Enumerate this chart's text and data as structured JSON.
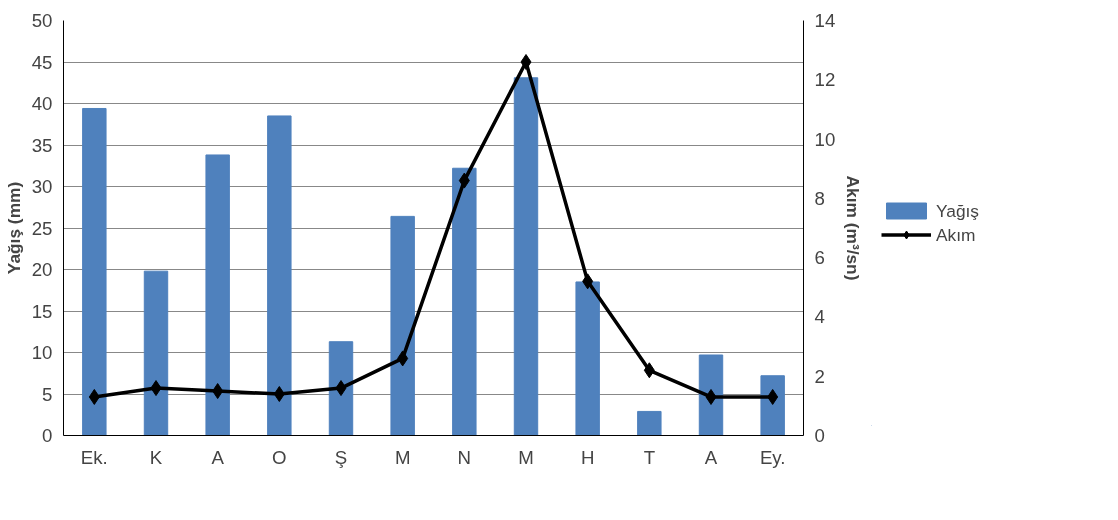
{
  "chart_data": {
    "type": "bar",
    "ylabel": "Yağış (mm)",
    "y2label": "Akım (m³/sn)",
    "categories": [
      "Ek.",
      "K",
      "A",
      "O",
      "Ş",
      "M",
      "N",
      "M",
      "H",
      "T",
      "A",
      "Ey."
    ],
    "series": [
      {
        "name": "Yağış",
        "color": "#4f81bd",
        "values": [
          39.4,
          19.8,
          33.8,
          38.5,
          11.3,
          26.4,
          32.2,
          43.1,
          18.5,
          2.9,
          9.7,
          7.2
        ]
      },
      {
        "name": "Akım",
        "type": "line",
        "axis": "y2",
        "color": "#000000",
        "marker": "diamond",
        "values": [
          1.3,
          1.6,
          1.5,
          1.4,
          1.6,
          2.6,
          8.6,
          12.6,
          5.2,
          2.2,
          1.3,
          1.3
        ]
      }
    ],
    "ylim": [
      0,
      50
    ],
    "yticks": [
      0,
      5,
      10,
      15,
      20,
      25,
      30,
      35,
      40,
      45,
      50
    ],
    "y2lim": [
      0,
      14
    ],
    "y2ticks": [
      0,
      2,
      4,
      6,
      8,
      10,
      12,
      14
    ],
    "grid": "y",
    "legend": "right"
  }
}
